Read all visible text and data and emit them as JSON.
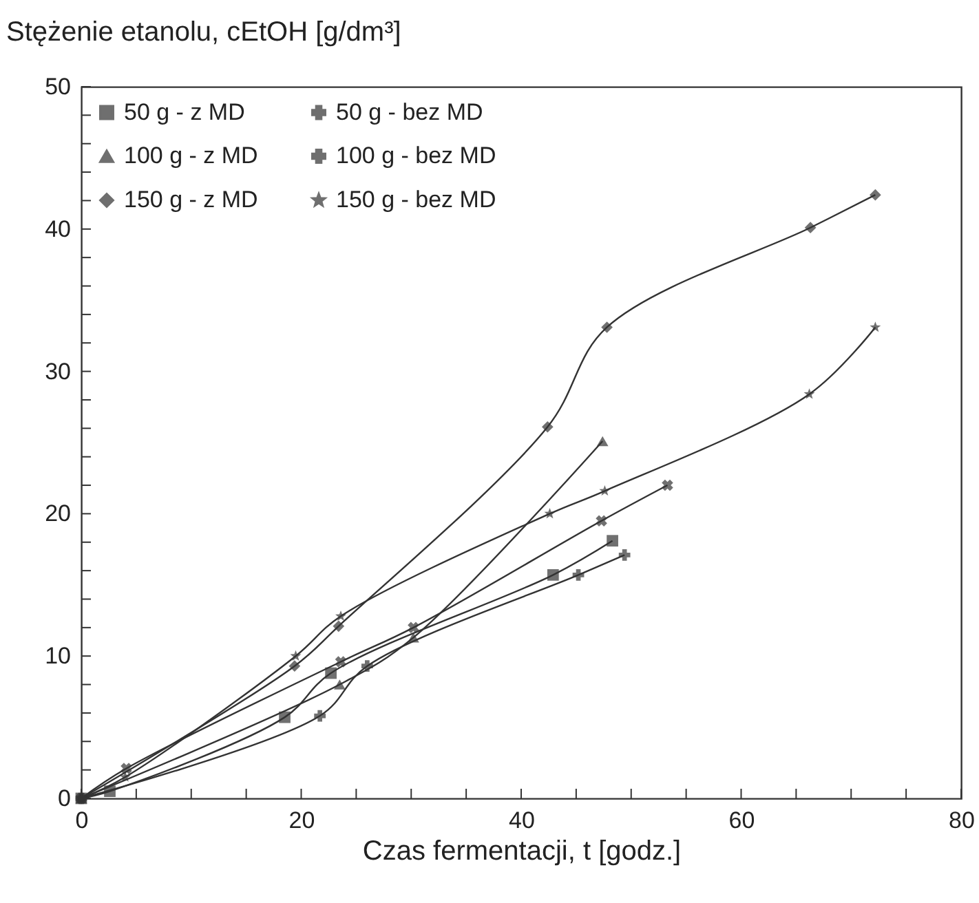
{
  "chart_data": {
    "type": "line",
    "xlabel": "Czas fermentacji, t [godz.]",
    "ylabel": "Stężenie etanolu, cEtOH [g/dm³]",
    "xlim": [
      0,
      80
    ],
    "ylim": [
      0,
      50
    ],
    "xticks": [
      0,
      {
        "value": 5,
        "label": null
      },
      {
        "value": 10,
        "label": null
      },
      {
        "value": 15,
        "label": null
      },
      20,
      {
        "value": 25,
        "label": null
      },
      {
        "value": 30,
        "label": null
      },
      {
        "value": 35,
        "label": null
      },
      40,
      {
        "value": 45,
        "label": null
      },
      {
        "value": 50,
        "label": null
      },
      {
        "value": 55,
        "label": null
      },
      60,
      {
        "value": 65,
        "label": null
      },
      {
        "value": 70,
        "label": null
      },
      {
        "value": 75,
        "label": null
      },
      80
    ],
    "yticks": [
      0,
      {
        "value": 2,
        "label": null
      },
      {
        "value": 4,
        "label": null
      },
      {
        "value": 6,
        "label": null
      },
      {
        "value": 8,
        "label": null
      },
      10,
      {
        "value": 12,
        "label": null
      },
      {
        "value": 14,
        "label": null
      },
      {
        "value": 16,
        "label": null
      },
      {
        "value": 18,
        "label": null
      },
      20,
      {
        "value": 22,
        "label": null
      },
      {
        "value": 24,
        "label": null
      },
      {
        "value": 26,
        "label": null
      },
      {
        "value": 28,
        "label": null
      },
      30,
      {
        "value": 32,
        "label": null
      },
      {
        "value": 34,
        "label": null
      },
      {
        "value": 36,
        "label": null
      },
      {
        "value": 38,
        "label": null
      },
      40,
      {
        "value": 42,
        "label": null
      },
      {
        "value": 44,
        "label": null
      },
      {
        "value": 46,
        "label": null
      },
      {
        "value": 48,
        "label": null
      },
      50
    ],
    "grid": false,
    "legend": "top left",
    "line_style": "solid",
    "series": [
      {
        "name": "50 g - z MD",
        "color": "#333333",
        "marker": "square",
        "x": [
          0,
          2.6,
          18.5,
          22.7,
          42.9,
          48.3
        ],
        "values": [
          0,
          0.5,
          5.7,
          8.8,
          15.7,
          18.1
        ]
      },
      {
        "name": "50 g - bez MD",
        "color": "#333333",
        "marker": "cross",
        "x": [
          0,
          21.7,
          26,
          45.2,
          49.4
        ],
        "values": [
          0,
          5.8,
          9.3,
          15.7,
          17.1
        ]
      },
      {
        "name": "100 g - z MD",
        "color": "#333333",
        "marker": "triangle",
        "x": [
          0,
          23.5,
          30.2,
          47.4
        ],
        "values": [
          0,
          8,
          11.3,
          25.1
        ]
      },
      {
        "name": "100 g - bez MD",
        "color": "#333333",
        "marker": "x",
        "x": [
          0,
          4.1,
          23.6,
          30.2,
          47.3,
          53.3
        ],
        "values": [
          0,
          2.1,
          9.6,
          12,
          19.5,
          22
        ]
      },
      {
        "name": "150 g - z MD",
        "color": "#333333",
        "marker": "diamond",
        "x": [
          0,
          19.4,
          23.4,
          42.4,
          47.8,
          66.3,
          72.2
        ],
        "values": [
          0,
          9.3,
          12.1,
          26.1,
          33.1,
          40.1,
          42.4
        ]
      },
      {
        "name": "150 g - bez MD",
        "color": "#333333",
        "marker": "star",
        "x": [
          0,
          4,
          19.5,
          23.6,
          42.6,
          47.6,
          66.2,
          72.2
        ],
        "values": [
          0,
          1.5,
          10,
          12.8,
          20,
          21.6,
          28.4,
          33.1
        ]
      }
    ]
  }
}
